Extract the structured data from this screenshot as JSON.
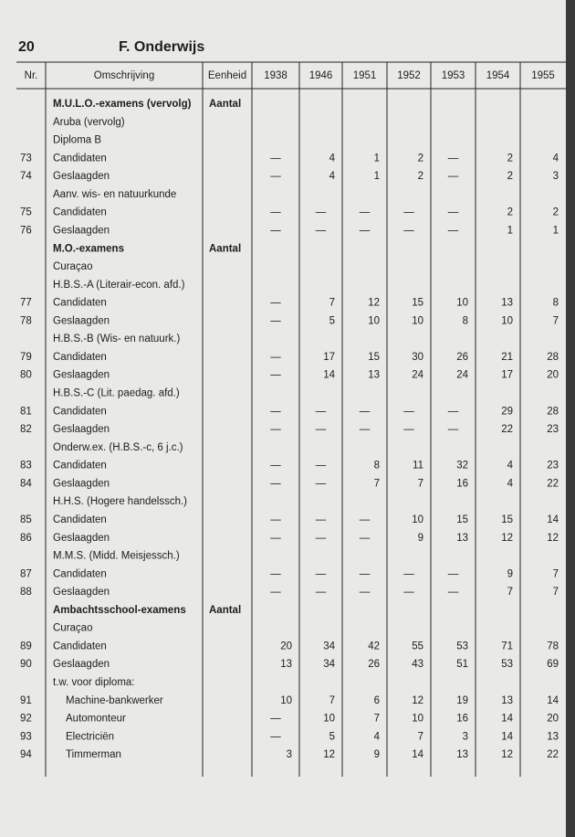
{
  "header": {
    "page": "20",
    "title": "F. Onderwijs"
  },
  "table": {
    "columns": [
      "Nr.",
      "Omschrijving",
      "Eenheid",
      "1938",
      "1946",
      "1951",
      "1952",
      "1953",
      "1954",
      "1955"
    ],
    "rows": [
      [
        "",
        "M.U.L.O.-examens (vervolg)",
        "Aantal",
        "",
        "",
        "",
        "",
        "",
        "",
        ""
      ],
      [
        "",
        "Aruba (vervolg)",
        "",
        "",
        "",
        "",
        "",
        "",
        "",
        ""
      ],
      [
        "",
        "Diploma B",
        "",
        "",
        "",
        "",
        "",
        "",
        "",
        ""
      ],
      [
        "73",
        "Candidaten",
        "",
        "—",
        "4",
        "1",
        "2",
        "—",
        "2",
        "4"
      ],
      [
        "74",
        "Geslaagden",
        "",
        "—",
        "4",
        "1",
        "2",
        "—",
        "2",
        "3"
      ],
      [
        "",
        "Aanv. wis- en natuurkunde",
        "",
        "",
        "",
        "",
        "",
        "",
        "",
        ""
      ],
      [
        "75",
        "Candidaten",
        "",
        "—",
        "—",
        "—",
        "—",
        "—",
        "2",
        "2"
      ],
      [
        "76",
        "Geslaagden",
        "",
        "—",
        "—",
        "—",
        "—",
        "—",
        "1",
        "1"
      ],
      [
        "",
        "M.O.-examens",
        "Aantal",
        "",
        "",
        "",
        "",
        "",
        "",
        ""
      ],
      [
        "",
        "Curaçao",
        "",
        "",
        "",
        "",
        "",
        "",
        "",
        ""
      ],
      [
        "",
        "H.B.S.-A (Literair-econ. afd.)",
        "",
        "",
        "",
        "",
        "",
        "",
        "",
        ""
      ],
      [
        "77",
        "Candidaten",
        "",
        "—",
        "7",
        "12",
        "15",
        "10",
        "13",
        "8"
      ],
      [
        "78",
        "Geslaagden",
        "",
        "—",
        "5",
        "10",
        "10",
        "8",
        "10",
        "7"
      ],
      [
        "",
        "H.B.S.-B (Wis- en natuurk.)",
        "",
        "",
        "",
        "",
        "",
        "",
        "",
        ""
      ],
      [
        "79",
        "Candidaten",
        "",
        "—",
        "17",
        "15",
        "30",
        "26",
        "21",
        "28"
      ],
      [
        "80",
        "Geslaagden",
        "",
        "—",
        "14",
        "13",
        "24",
        "24",
        "17",
        "20"
      ],
      [
        "",
        "H.B.S.-C (Lit. paedag. afd.)",
        "",
        "",
        "",
        "",
        "",
        "",
        "",
        ""
      ],
      [
        "81",
        "Candidaten",
        "",
        "—",
        "—",
        "—",
        "—",
        "—",
        "29",
        "28"
      ],
      [
        "82",
        "Geslaagden",
        "",
        "—",
        "—",
        "—",
        "—",
        "—",
        "22",
        "23"
      ],
      [
        "",
        "Onderw.ex. (H.B.S.-c, 6 j.c.)",
        "",
        "",
        "",
        "",
        "",
        "",
        "",
        ""
      ],
      [
        "83",
        "Candidaten",
        "",
        "—",
        "—",
        "8",
        "11",
        "32",
        "4",
        "23"
      ],
      [
        "84",
        "Geslaagden",
        "",
        "—",
        "—",
        "7",
        "7",
        "16",
        "4",
        "22"
      ],
      [
        "",
        "H.H.S. (Hogere handelssch.)",
        "",
        "",
        "",
        "",
        "",
        "",
        "",
        ""
      ],
      [
        "85",
        "Candidaten",
        "",
        "—",
        "—",
        "—",
        "10",
        "15",
        "15",
        "14"
      ],
      [
        "86",
        "Geslaagden",
        "",
        "—",
        "—",
        "—",
        "9",
        "13",
        "12",
        "12"
      ],
      [
        "",
        "M.M.S. (Midd. Meisjessch.)",
        "",
        "",
        "",
        "",
        "",
        "",
        "",
        ""
      ],
      [
        "87",
        "Candidaten",
        "",
        "—",
        "—",
        "—",
        "—",
        "—",
        "9",
        "7"
      ],
      [
        "88",
        "Geslaagden",
        "",
        "—",
        "—",
        "—",
        "—",
        "—",
        "7",
        "7"
      ],
      [
        "",
        "Ambachtsschool-examens",
        "Aantal",
        "",
        "",
        "",
        "",
        "",
        "",
        ""
      ],
      [
        "",
        "Curaçao",
        "",
        "",
        "",
        "",
        "",
        "",
        "",
        ""
      ],
      [
        "89",
        "Candidaten",
        "",
        "20",
        "34",
        "42",
        "55",
        "53",
        "71",
        "78"
      ],
      [
        "90",
        "Geslaagden",
        "",
        "13",
        "34",
        "26",
        "43",
        "51",
        "53",
        "69"
      ],
      [
        "",
        "t.w. voor diploma:",
        "",
        "",
        "",
        "",
        "",
        "",
        "",
        ""
      ],
      [
        "91",
        "Machine-bankwerker",
        "",
        "10",
        "7",
        "6",
        "12",
        "19",
        "13",
        "14"
      ],
      [
        "92",
        "Automonteur",
        "",
        "—",
        "10",
        "7",
        "10",
        "16",
        "14",
        "20"
      ],
      [
        "93",
        "Electriciën",
        "",
        "—",
        "5",
        "4",
        "7",
        "3",
        "14",
        "13"
      ],
      [
        "94",
        "Timmerman",
        "",
        "3",
        "12",
        "9",
        "14",
        "13",
        "12",
        "22"
      ]
    ]
  }
}
